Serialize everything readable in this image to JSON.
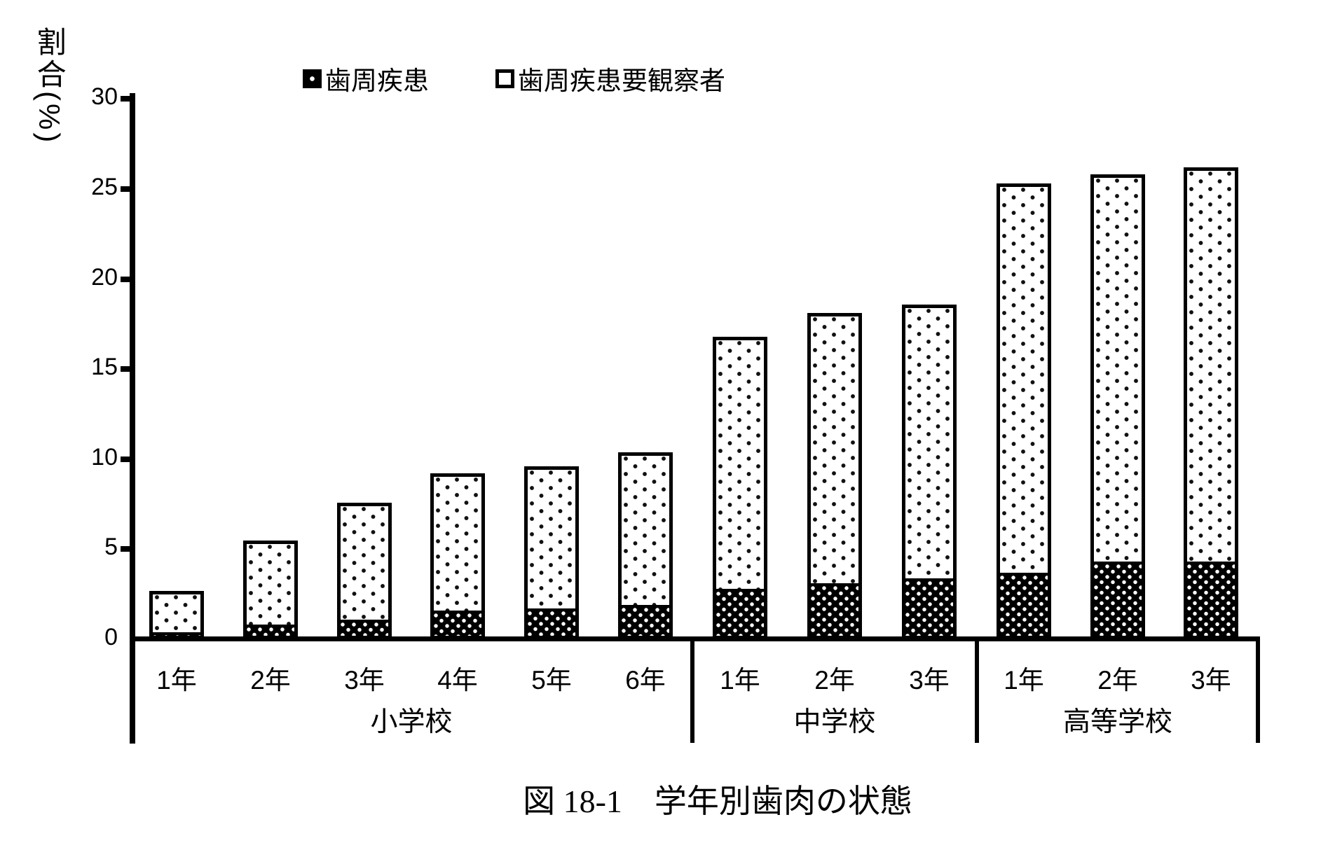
{
  "y_axis": {
    "title": "割合(%)",
    "tick_labels": [
      "0",
      "5",
      "10",
      "15",
      "20",
      "25",
      "30"
    ]
  },
  "legend": {
    "items": [
      {
        "label": "歯周疾患",
        "swatch": "black-white-dotted"
      },
      {
        "label": "歯周疾患要観察者",
        "swatch": "white-outlined"
      }
    ]
  },
  "caption": "図 18-1　学年別歯肉の状態",
  "colors": {
    "foreground": "#000000",
    "background": "#ffffff"
  },
  "chart_data": {
    "type": "bar",
    "stacked": true,
    "title": "図 18-1　学年別歯肉の状態",
    "ylabel": "割合(%)",
    "unit": "%",
    "ylim": [
      0,
      30
    ],
    "yticks": [
      0,
      5,
      10,
      15,
      20,
      25,
      30
    ],
    "grid": false,
    "legend_position": "top",
    "series_names": [
      "歯周疾患",
      "歯周疾患要観察者"
    ],
    "groups": [
      {
        "school": "小学校",
        "bars": [
          {
            "grade": "1年",
            "disease": 0.4,
            "observer": 2.3,
            "total": 2.7
          },
          {
            "grade": "2年",
            "disease": 0.8,
            "observer": 4.7,
            "total": 5.5
          },
          {
            "grade": "3年",
            "disease": 1.1,
            "observer": 6.5,
            "total": 7.6
          },
          {
            "grade": "4年",
            "disease": 1.6,
            "observer": 7.6,
            "total": 9.2
          },
          {
            "grade": "5年",
            "disease": 1.7,
            "observer": 7.9,
            "total": 9.6
          },
          {
            "grade": "6年",
            "disease": 1.9,
            "observer": 8.5,
            "total": 10.4
          }
        ]
      },
      {
        "school": "中学校",
        "bars": [
          {
            "grade": "1年",
            "disease": 2.8,
            "observer": 14.0,
            "total": 16.8
          },
          {
            "grade": "2年",
            "disease": 3.1,
            "observer": 15.0,
            "total": 18.1
          },
          {
            "grade": "3年",
            "disease": 3.4,
            "observer": 15.2,
            "total": 18.6
          }
        ]
      },
      {
        "school": "高等学校",
        "bars": [
          {
            "grade": "1年",
            "disease": 3.7,
            "observer": 21.6,
            "total": 25.3
          },
          {
            "grade": "2年",
            "disease": 4.3,
            "observer": 21.5,
            "total": 25.8
          },
          {
            "grade": "3年",
            "disease": 4.3,
            "observer": 21.9,
            "total": 26.2
          }
        ]
      }
    ]
  }
}
